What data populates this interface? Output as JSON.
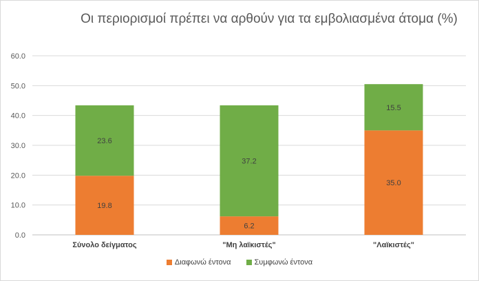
{
  "chart_data": {
    "type": "bar",
    "stacked": true,
    "title": "Οι περιορισμοί πρέπει να αρθούν για τα εμβολιασμένα άτομα (%)",
    "categories": [
      "Σύνολο δείγματος",
      "\"Μη λαϊκιστές\"",
      "\"Λαϊκιστές\""
    ],
    "series": [
      {
        "name": "Διαφωνώ έντονα",
        "color": "#ed7d31",
        "values": [
          19.8,
          6.2,
          35.0
        ]
      },
      {
        "name": "Συμφωνώ έντονα",
        "color": "#70ad47",
        "values": [
          23.6,
          37.2,
          15.5
        ]
      }
    ],
    "ylim": [
      0,
      60
    ],
    "yticks": [
      "0.0",
      "10.0",
      "20.0",
      "30.0",
      "40.0",
      "50.0",
      "60.0"
    ],
    "grid": true,
    "legend_position": "bottom"
  }
}
